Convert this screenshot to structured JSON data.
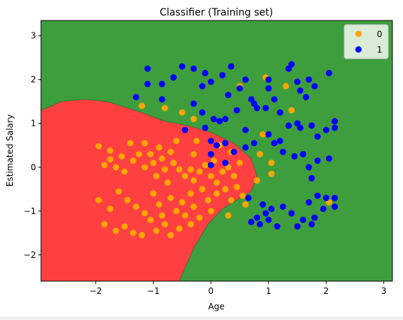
{
  "chart_data": {
    "type": "scatter",
    "title": "Classifier (Training set)",
    "xlabel": "Age",
    "ylabel": "Estimated Salary",
    "xlim": [
      -2.95,
      3.15
    ],
    "ylim": [
      -2.6,
      3.35
    ],
    "xticks": [
      -2,
      -1,
      0,
      1,
      2,
      3
    ],
    "yticks": [
      -2,
      -1,
      0,
      1,
      2,
      3
    ],
    "xtick_labels": [
      "−2",
      "−1",
      "0",
      "1",
      "2",
      "3"
    ],
    "ytick_labels": [
      "−2",
      "−1",
      "0",
      "1",
      "2",
      "3"
    ],
    "grid": false,
    "legend_position": "top-right",
    "background_region": {
      "class": "1",
      "color": "#3e9e3e"
    },
    "region_class0_color": "#ff4040",
    "region_class0_boundary": [
      [
        -2.95,
        -2.6
      ],
      [
        -2.95,
        1.3
      ],
      [
        -2.6,
        1.5
      ],
      [
        -2.2,
        1.55
      ],
      [
        -1.8,
        1.5
      ],
      [
        -1.2,
        1.25
      ],
      [
        -0.8,
        1.05
      ],
      [
        -0.4,
        0.95
      ],
      [
        0.0,
        0.8
      ],
      [
        0.4,
        0.55
      ],
      [
        0.7,
        0.2
      ],
      [
        0.8,
        -0.2
      ],
      [
        0.7,
        -0.55
      ],
      [
        0.45,
        -0.75
      ],
      [
        0.2,
        -0.95
      ],
      [
        -0.05,
        -1.3
      ],
      [
        -0.3,
        -1.85
      ],
      [
        -0.45,
        -2.3
      ],
      [
        -0.55,
        -2.6
      ]
    ],
    "series": [
      {
        "name": "0",
        "color": "#ffa500",
        "points": [
          [
            -1.95,
            0.48
          ],
          [
            -1.75,
            0.38
          ],
          [
            -1.75,
            0.18
          ],
          [
            -1.85,
            0.05
          ],
          [
            -1.65,
            0.0
          ],
          [
            -1.55,
            0.25
          ],
          [
            -1.5,
            -0.1
          ],
          [
            -1.35,
            0.15
          ],
          [
            -1.25,
            0.3
          ],
          [
            -1.15,
            0.55
          ],
          [
            -1.05,
            0.3
          ],
          [
            -1.0,
            0.1
          ],
          [
            -0.95,
            -0.2
          ],
          [
            -0.9,
            0.45
          ],
          [
            -0.85,
            0.2
          ],
          [
            -0.8,
            -0.05
          ],
          [
            -0.75,
            -0.35
          ],
          [
            -0.65,
            0.1
          ],
          [
            -0.55,
            -0.05
          ],
          [
            -0.45,
            -0.2
          ],
          [
            -0.3,
            -0.3
          ],
          [
            -0.2,
            -0.1
          ],
          [
            -0.1,
            0.05
          ],
          [
            0.0,
            -0.2
          ],
          [
            0.1,
            -0.35
          ],
          [
            0.2,
            -0.1
          ],
          [
            0.3,
            0.0
          ],
          [
            0.4,
            -0.2
          ],
          [
            0.5,
            0.1
          ],
          [
            -1.95,
            -0.75
          ],
          [
            -1.75,
            -0.95
          ],
          [
            -1.6,
            -0.55
          ],
          [
            -1.45,
            -0.75
          ],
          [
            -1.3,
            -0.9
          ],
          [
            -1.15,
            -1.05
          ],
          [
            -1.0,
            -0.6
          ],
          [
            -0.9,
            -0.85
          ],
          [
            -0.85,
            -1.1
          ],
          [
            -0.7,
            -0.7
          ],
          [
            -0.6,
            -1.0
          ],
          [
            -0.5,
            -0.8
          ],
          [
            -0.45,
            -1.1
          ],
          [
            -0.35,
            -0.6
          ],
          [
            -0.3,
            -0.9
          ],
          [
            -0.15,
            -0.5
          ],
          [
            -0.05,
            -0.75
          ],
          [
            0.0,
            -1.0
          ],
          [
            0.1,
            -0.6
          ],
          [
            0.25,
            -0.5
          ],
          [
            0.35,
            -0.75
          ],
          [
            0.45,
            -0.45
          ],
          [
            0.55,
            -0.65
          ],
          [
            -1.85,
            -1.3
          ],
          [
            -1.65,
            -1.45
          ],
          [
            -1.5,
            -1.35
          ],
          [
            -1.35,
            -1.5
          ],
          [
            -1.2,
            -1.55
          ],
          [
            -1.05,
            -1.2
          ],
          [
            -0.95,
            -1.45
          ],
          [
            -0.8,
            -1.3
          ],
          [
            -0.7,
            -1.55
          ],
          [
            -0.55,
            -1.4
          ],
          [
            -0.35,
            -1.3
          ],
          [
            -0.2,
            -1.15
          ],
          [
            0.3,
            -1.1
          ],
          [
            -1.2,
            1.4
          ],
          [
            -0.8,
            1.35
          ],
          [
            -0.5,
            1.25
          ],
          [
            -0.3,
            1.1
          ],
          [
            0.5,
            1.85
          ],
          [
            0.95,
            2.05
          ],
          [
            1.3,
            1.85
          ],
          [
            1.4,
            1.3
          ],
          [
            0.9,
            0.75
          ],
          [
            0.85,
            0.3
          ],
          [
            1.05,
            0.1
          ],
          [
            1.05,
            -0.15
          ],
          [
            0.6,
            -0.85
          ],
          [
            0.8,
            -0.3
          ],
          [
            2.05,
            -0.8
          ],
          [
            -0.3,
            0.3
          ],
          [
            -0.25,
            0.6
          ],
          [
            -0.6,
            0.6
          ],
          [
            -0.7,
            0.35
          ],
          [
            -1.4,
            0.55
          ],
          [
            -1.15,
            0.0
          ],
          [
            -0.35,
            -0.05
          ],
          [
            0.05,
            0.15
          ],
          [
            0.35,
            0.35
          ],
          [
            0.15,
            0.5
          ]
        ]
      },
      {
        "name": "1",
        "color": "#0000ff",
        "points": [
          [
            -1.1,
            2.25
          ],
          [
            -0.85,
            1.9
          ],
          [
            -0.65,
            2.05
          ],
          [
            -0.5,
            2.3
          ],
          [
            -0.3,
            2.25
          ],
          [
            -0.15,
            1.85
          ],
          [
            -0.1,
            2.15
          ],
          [
            0.0,
            1.95
          ],
          [
            0.2,
            2.1
          ],
          [
            0.3,
            1.65
          ],
          [
            0.35,
            2.3
          ],
          [
            0.5,
            1.8
          ],
          [
            0.6,
            2.0
          ],
          [
            0.7,
            1.55
          ],
          [
            0.8,
            1.35
          ],
          [
            1.0,
            2.0
          ],
          [
            1.0,
            1.8
          ],
          [
            1.1,
            1.55
          ],
          [
            1.2,
            1.25
          ],
          [
            1.35,
            2.25
          ],
          [
            1.4,
            2.35
          ],
          [
            1.5,
            1.95
          ],
          [
            1.55,
            1.75
          ],
          [
            1.65,
            1.6
          ],
          [
            1.7,
            2.0
          ],
          [
            1.8,
            1.85
          ],
          [
            2.05,
            2.15
          ],
          [
            -1.3,
            1.6
          ],
          [
            -1.1,
            1.9
          ],
          [
            -0.85,
            1.55
          ],
          [
            -0.3,
            1.45
          ],
          [
            -0.15,
            1.25
          ],
          [
            0.05,
            1.1
          ],
          [
            0.15,
            1.05
          ],
          [
            0.25,
            1.1
          ],
          [
            0.45,
            1.3
          ],
          [
            0.6,
            0.85
          ],
          [
            0.75,
            1.45
          ],
          [
            0.95,
            1.35
          ],
          [
            1.2,
            0.6
          ],
          [
            1.35,
            0.95
          ],
          [
            1.5,
            1.0
          ],
          [
            1.55,
            0.9
          ],
          [
            1.75,
            0.95
          ],
          [
            1.85,
            0.7
          ],
          [
            2.0,
            0.85
          ],
          [
            2.15,
            1.05
          ],
          [
            2.15,
            0.9
          ],
          [
            -0.45,
            0.85
          ],
          [
            -0.1,
            0.9
          ],
          [
            0.0,
            0.6
          ],
          [
            0.0,
            0.3
          ],
          [
            0.1,
            0.5
          ],
          [
            0.25,
            0.55
          ],
          [
            0.4,
            0.35
          ],
          [
            0.6,
            0.45
          ],
          [
            0.75,
            0.55
          ],
          [
            1.0,
            0.75
          ],
          [
            1.1,
            0.55
          ],
          [
            1.25,
            0.35
          ],
          [
            1.45,
            0.25
          ],
          [
            1.6,
            0.3
          ],
          [
            1.7,
            0.0
          ],
          [
            1.75,
            -0.25
          ],
          [
            1.85,
            0.15
          ],
          [
            2.05,
            0.2
          ],
          [
            0.0,
            0.05
          ],
          [
            0.25,
            0.1
          ],
          [
            0.65,
            -0.7
          ],
          [
            0.9,
            -0.85
          ],
          [
            0.95,
            -1.05
          ],
          [
            1.0,
            -1.2
          ],
          [
            1.05,
            -0.95
          ],
          [
            1.15,
            -1.35
          ],
          [
            1.25,
            -0.9
          ],
          [
            1.4,
            -1.05
          ],
          [
            1.5,
            -1.35
          ],
          [
            1.6,
            -1.2
          ],
          [
            1.7,
            -0.8
          ],
          [
            1.85,
            -0.65
          ],
          [
            1.95,
            -0.95
          ],
          [
            2.0,
            -0.7
          ],
          [
            2.15,
            -0.9
          ],
          [
            0.7,
            -1.25
          ],
          [
            0.8,
            -1.15
          ],
          [
            0.85,
            -1.3
          ],
          [
            1.75,
            -1.3
          ],
          [
            2.15,
            -0.7
          ],
          [
            1.8,
            -1.15
          ]
        ]
      }
    ]
  }
}
